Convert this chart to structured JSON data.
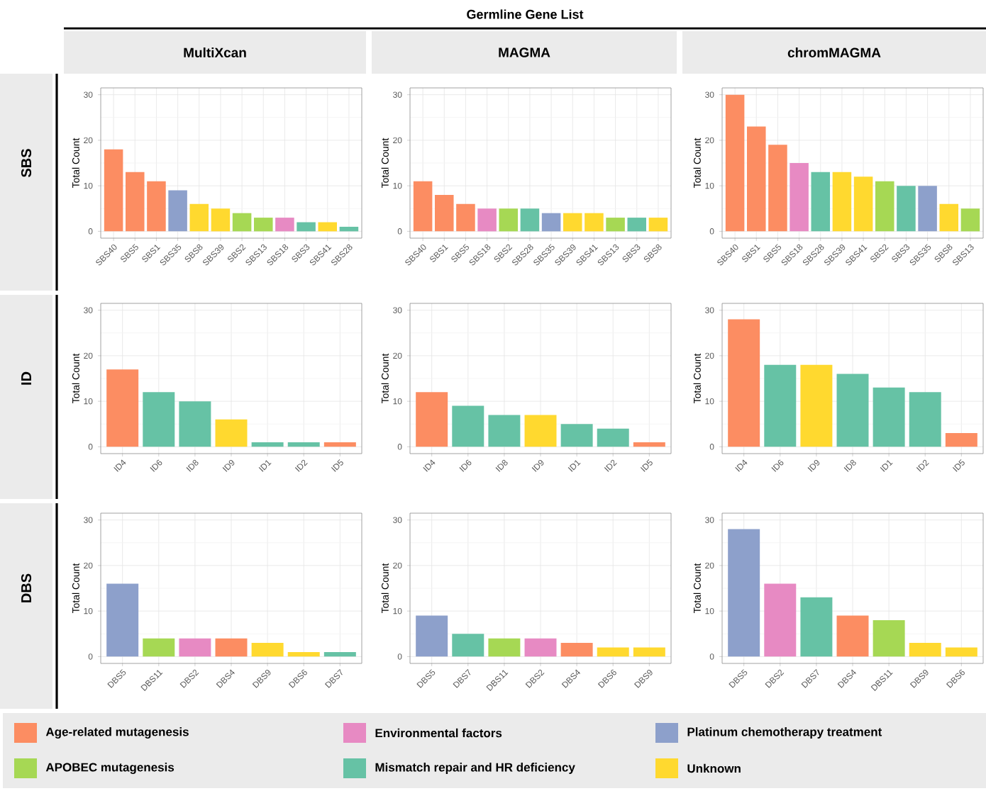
{
  "chart_data": [
    {
      "type": "bar",
      "title": "MultiXcan",
      "annotations": [
        "Germline Gene List",
        "SBS"
      ],
      "ylabel": "Total Count",
      "categories": [
        "SBS40",
        "SBS5",
        "SBS1",
        "SBS35",
        "SBS8",
        "SBS39",
        "SBS2",
        "SBS13",
        "SBS18",
        "SBS3",
        "SBS41",
        "SBS28"
      ],
      "values": [
        18,
        13,
        11,
        9,
        6,
        5,
        4,
        3,
        3,
        2,
        2,
        1
      ],
      "colors": [
        "#fc8d62",
        "#fc8d62",
        "#fc8d62",
        "#8da0cb",
        "#ffd92f",
        "#ffd92f",
        "#a6d854",
        "#a6d854",
        "#e78ac3",
        "#66c2a5",
        "#ffd92f",
        "#66c2a5"
      ],
      "ylim": [
        -1.5,
        31.5
      ],
      "yticks": [
        0,
        10,
        20,
        30
      ],
      "grid": true
    },
    {
      "type": "bar",
      "title": "MAGMA",
      "ylabel": "Total Count",
      "categories": [
        "SBS40",
        "SBS1",
        "SBS5",
        "SBS18",
        "SBS2",
        "SBS28",
        "SBS35",
        "SBS39",
        "SBS41",
        "SBS13",
        "SBS3",
        "SBS8"
      ],
      "values": [
        11,
        8,
        6,
        5,
        5,
        5,
        4,
        4,
        4,
        3,
        3,
        3
      ],
      "colors": [
        "#fc8d62",
        "#fc8d62",
        "#fc8d62",
        "#e78ac3",
        "#a6d854",
        "#66c2a5",
        "#8da0cb",
        "#ffd92f",
        "#ffd92f",
        "#a6d854",
        "#66c2a5",
        "#ffd92f"
      ],
      "ylim": [
        -1.5,
        31.5
      ],
      "yticks": [
        0,
        10,
        20,
        30
      ],
      "grid": true
    },
    {
      "type": "bar",
      "title": "chromMAGMA",
      "ylabel": "Total Count",
      "categories": [
        "SBS40",
        "SBS1",
        "SBS5",
        "SBS18",
        "SBS28",
        "SBS39",
        "SBS41",
        "SBS2",
        "SBS3",
        "SBS35",
        "SBS8",
        "SBS13"
      ],
      "values": [
        30,
        23,
        19,
        15,
        13,
        13,
        12,
        11,
        10,
        10,
        6,
        5
      ],
      "colors": [
        "#fc8d62",
        "#fc8d62",
        "#fc8d62",
        "#e78ac3",
        "#66c2a5",
        "#ffd92f",
        "#ffd92f",
        "#a6d854",
        "#66c2a5",
        "#8da0cb",
        "#ffd92f",
        "#a6d854"
      ],
      "ylim": [
        -1.5,
        31.5
      ],
      "yticks": [
        0,
        10,
        20,
        30
      ],
      "grid": true
    },
    {
      "type": "bar",
      "annotations": [
        "ID"
      ],
      "ylabel": "Total Count",
      "categories": [
        "ID4",
        "ID6",
        "ID8",
        "ID9",
        "ID1",
        "ID2",
        "ID5"
      ],
      "values": [
        17,
        12,
        10,
        6,
        1,
        1,
        1
      ],
      "colors": [
        "#fc8d62",
        "#66c2a5",
        "#66c2a5",
        "#ffd92f",
        "#66c2a5",
        "#66c2a5",
        "#fc8d62"
      ],
      "ylim": [
        -1.5,
        31.5
      ],
      "yticks": [
        0,
        10,
        20,
        30
      ],
      "grid": true
    },
    {
      "type": "bar",
      "ylabel": "Total Count",
      "categories": [
        "ID4",
        "ID6",
        "ID8",
        "ID9",
        "ID1",
        "ID2",
        "ID5"
      ],
      "values": [
        12,
        9,
        7,
        7,
        5,
        4,
        1
      ],
      "colors": [
        "#fc8d62",
        "#66c2a5",
        "#66c2a5",
        "#ffd92f",
        "#66c2a5",
        "#66c2a5",
        "#fc8d62"
      ],
      "ylim": [
        -1.5,
        31.5
      ],
      "yticks": [
        0,
        10,
        20,
        30
      ],
      "grid": true
    },
    {
      "type": "bar",
      "ylabel": "Total Count",
      "categories": [
        "ID4",
        "ID6",
        "ID9",
        "ID8",
        "ID1",
        "ID2",
        "ID5"
      ],
      "values": [
        28,
        18,
        18,
        16,
        13,
        12,
        3
      ],
      "colors": [
        "#fc8d62",
        "#66c2a5",
        "#ffd92f",
        "#66c2a5",
        "#66c2a5",
        "#66c2a5",
        "#fc8d62"
      ],
      "ylim": [
        -1.5,
        31.5
      ],
      "yticks": [
        0,
        10,
        20,
        30
      ],
      "grid": true
    },
    {
      "type": "bar",
      "annotations": [
        "DBS"
      ],
      "ylabel": "Total Count",
      "categories": [
        "DBS5",
        "DBS11",
        "DBS2",
        "DBS4",
        "DBS9",
        "DBS6",
        "DBS7"
      ],
      "values": [
        16,
        4,
        4,
        4,
        3,
        1,
        1
      ],
      "colors": [
        "#8da0cb",
        "#a6d854",
        "#e78ac3",
        "#fc8d62",
        "#ffd92f",
        "#ffd92f",
        "#66c2a5"
      ],
      "ylim": [
        -1.5,
        31.5
      ],
      "yticks": [
        0,
        10,
        20,
        30
      ],
      "grid": true
    },
    {
      "type": "bar",
      "ylabel": "Total Count",
      "categories": [
        "DBS5",
        "DBS7",
        "DBS11",
        "DBS2",
        "DBS4",
        "DBS6",
        "DBS9"
      ],
      "values": [
        9,
        5,
        4,
        4,
        3,
        2,
        2
      ],
      "colors": [
        "#8da0cb",
        "#66c2a5",
        "#a6d854",
        "#e78ac3",
        "#fc8d62",
        "#ffd92f",
        "#ffd92f"
      ],
      "ylim": [
        -1.5,
        31.5
      ],
      "yticks": [
        0,
        10,
        20,
        30
      ],
      "grid": true
    },
    {
      "type": "bar",
      "ylabel": "Total Count",
      "categories": [
        "DBS5",
        "DBS2",
        "DBS7",
        "DBS4",
        "DBS11",
        "DBS9",
        "DBS6"
      ],
      "values": [
        28,
        16,
        13,
        9,
        8,
        3,
        2
      ],
      "colors": [
        "#8da0cb",
        "#e78ac3",
        "#66c2a5",
        "#fc8d62",
        "#a6d854",
        "#ffd92f",
        "#ffd92f"
      ],
      "ylim": [
        -1.5,
        31.5
      ],
      "yticks": [
        0,
        10,
        20,
        30
      ],
      "grid": true
    },
    {
      "type": "other",
      "annotations": [
        "Age-related mutagenesis",
        "APOBEC mutagenesis",
        "Environmental factors",
        "Mismatch repair and HR deficiency",
        "Platinum chemotherapy treatment",
        "Unknown"
      ],
      "colors": [
        "#fc8d62",
        "#a6d854",
        "#e78ac3",
        "#66c2a5",
        "#8da0cb",
        "#ffd92f"
      ]
    }
  ]
}
